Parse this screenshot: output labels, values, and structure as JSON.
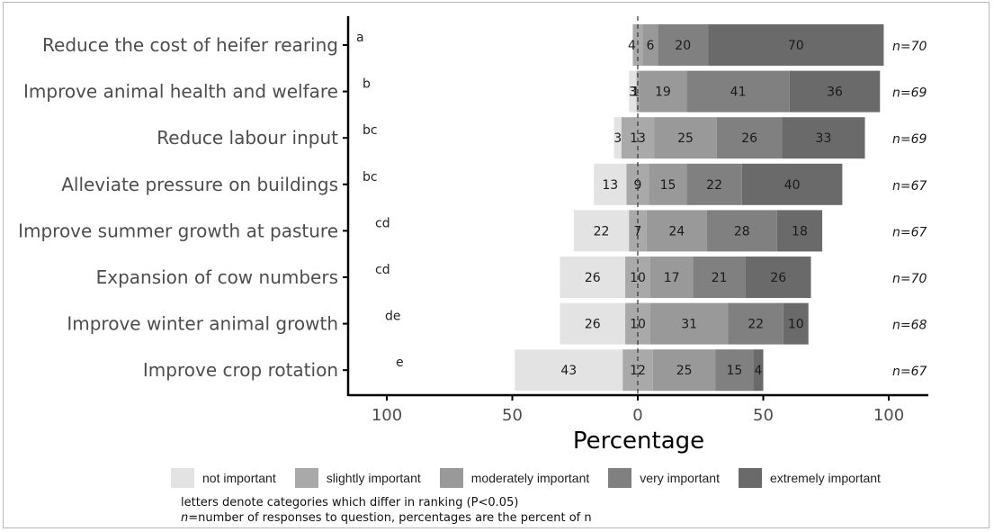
{
  "chart_data": {
    "type": "bar",
    "orientation": "horizontal",
    "stacked": "diverging",
    "xlabel": "Percentage",
    "xlim": [
      -115,
      115
    ],
    "xticks": [
      {
        "value": -100,
        "label": "100"
      },
      {
        "value": -50,
        "label": "50"
      },
      {
        "value": 0,
        "label": "0"
      },
      {
        "value": 50,
        "label": "50"
      },
      {
        "value": 100,
        "label": "100"
      }
    ],
    "categories": [
      "Reduce the cost of heifer rearing",
      "Improve animal health and welfare",
      "Reduce labour input",
      "Alleviate pressure on buildings",
      "Improve summer growth at pasture",
      "Expansion of cow numbers",
      "Improve winter animal growth",
      "Improve crop rotation"
    ],
    "significance_letters": [
      "a",
      "b",
      "bc",
      "bc",
      "cd",
      "cd",
      "de",
      "e"
    ],
    "n_labels": [
      "n=70",
      "n=69",
      "n=69",
      "n=67",
      "n=67",
      "n=70",
      "n=68",
      "n=67"
    ],
    "series": [
      {
        "name": "not important",
        "color": "#e3e3e3",
        "values": [
          0,
          3,
          3,
          13,
          22,
          26,
          26,
          43
        ],
        "labels": [
          "",
          "3",
          "3",
          "13",
          "22",
          "26",
          "26",
          "43"
        ]
      },
      {
        "name": "slightly important",
        "color": "#a9a9a9",
        "values": [
          4,
          1,
          13,
          9,
          7,
          10,
          10,
          12
        ],
        "labels": [
          "4",
          "1",
          "13",
          "9",
          "7",
          "10",
          "10",
          "12"
        ]
      },
      {
        "name": "moderately important",
        "color": "#999999",
        "values": [
          6,
          19,
          25,
          15,
          24,
          17,
          31,
          25
        ],
        "labels": [
          "6",
          "19",
          "25",
          "15",
          "24",
          "17",
          "31",
          "25"
        ]
      },
      {
        "name": "very important",
        "color": "#808080",
        "values": [
          20,
          41,
          26,
          22,
          28,
          21,
          22,
          15
        ],
        "labels": [
          "20",
          "41",
          "26",
          "22",
          "28",
          "21",
          "22",
          "15"
        ]
      },
      {
        "name": "extremely important",
        "color": "#6a6a6a",
        "values": [
          70,
          36,
          33,
          40,
          18,
          26,
          10,
          4
        ],
        "labels": [
          "70",
          "36",
          "33",
          "40",
          "18",
          "26",
          "10",
          "4"
        ]
      }
    ],
    "notes": {
      "line1": "letters denote categories which differ in ranking (P<0.05)",
      "line2_italic": "n",
      "line2_rest": "=number of responses to question, percentages are the percent of n"
    }
  }
}
